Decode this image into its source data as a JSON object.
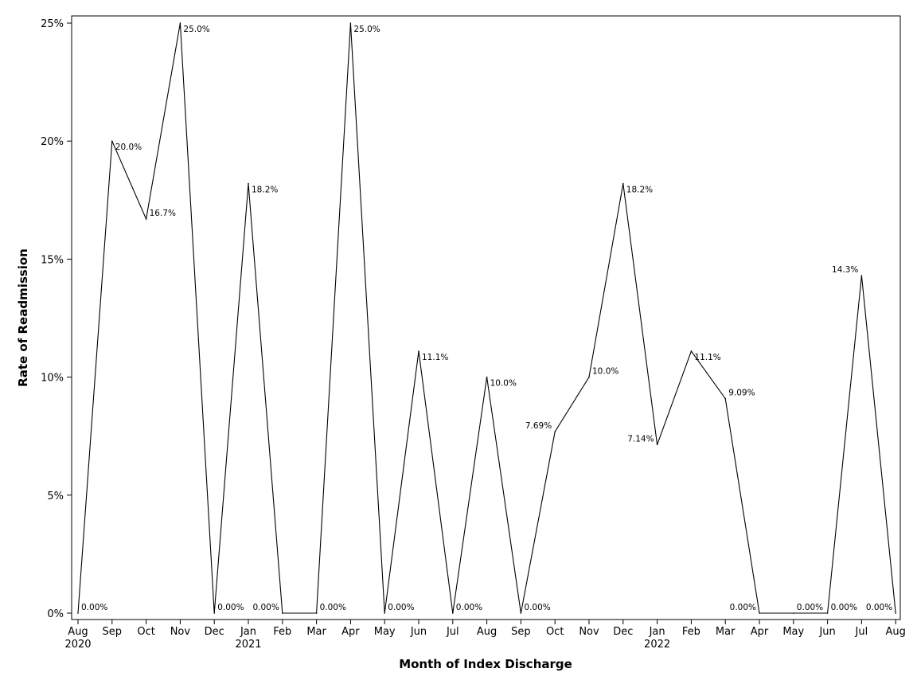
{
  "chart_data": {
    "type": "line",
    "xlabel": "Month of Index Discharge",
    "ylabel": "Rate of Readmission",
    "ylim": [
      0,
      25
    ],
    "y_ticks": [
      {
        "value": 0,
        "label": "0%"
      },
      {
        "value": 5,
        "label": "5%"
      },
      {
        "value": 10,
        "label": "10%"
      },
      {
        "value": 15,
        "label": "15%"
      },
      {
        "value": 20,
        "label": "20%"
      },
      {
        "value": 25,
        "label": "25%"
      }
    ],
    "grid": false,
    "legend": "none",
    "line_color": "#000000",
    "points": [
      {
        "month": "Aug",
        "year": "2020",
        "value": 0,
        "label": "0.00%"
      },
      {
        "month": "Sep",
        "year": "",
        "value": 20.0,
        "label": "20.0%"
      },
      {
        "month": "Oct",
        "year": "",
        "value": 16.7,
        "label": "16.7%"
      },
      {
        "month": "Nov",
        "year": "",
        "value": 25.0,
        "label": "25.0%"
      },
      {
        "month": "Dec",
        "year": "",
        "value": 0,
        "label": "0.00%"
      },
      {
        "month": "Jan",
        "year": "2021",
        "value": 18.2,
        "label": "18.2%"
      },
      {
        "month": "Feb",
        "year": "",
        "value": 0,
        "label": "0.00%"
      },
      {
        "month": "Mar",
        "year": "",
        "value": 0,
        "label": "0.00%"
      },
      {
        "month": "Apr",
        "year": "",
        "value": 25.0,
        "label": "25.0%"
      },
      {
        "month": "May",
        "year": "",
        "value": 0,
        "label": "0.00%"
      },
      {
        "month": "Jun",
        "year": "",
        "value": 11.1,
        "label": "11.1%"
      },
      {
        "month": "Jul",
        "year": "",
        "value": 0,
        "label": "0.00%"
      },
      {
        "month": "Aug",
        "year": "",
        "value": 10.0,
        "label": "10.0%"
      },
      {
        "month": "Sep",
        "year": "",
        "value": 0,
        "label": "0.00%"
      },
      {
        "month": "Oct",
        "year": "",
        "value": 7.69,
        "label": "7.69%"
      },
      {
        "month": "Nov",
        "year": "",
        "value": 10.0,
        "label": "10.0%"
      },
      {
        "month": "Dec",
        "year": "",
        "value": 18.2,
        "label": "18.2%"
      },
      {
        "month": "Jan",
        "year": "2022",
        "value": 7.14,
        "label": "7.14%"
      },
      {
        "month": "Feb",
        "year": "",
        "value": 11.1,
        "label": "11.1%"
      },
      {
        "month": "Mar",
        "year": "",
        "value": 9.09,
        "label": "9.09%"
      },
      {
        "month": "Apr",
        "year": "",
        "value": 0,
        "label": "0.00%"
      },
      {
        "month": "May",
        "year": "",
        "value": 0,
        "label": "0.00%"
      },
      {
        "month": "Jun",
        "year": "",
        "value": 0,
        "label": "0.00%"
      },
      {
        "month": "Jul",
        "year": "",
        "value": 14.3,
        "label": "14.3%"
      },
      {
        "month": "Aug",
        "year": "",
        "value": 0,
        "label": "0.00%"
      }
    ]
  }
}
